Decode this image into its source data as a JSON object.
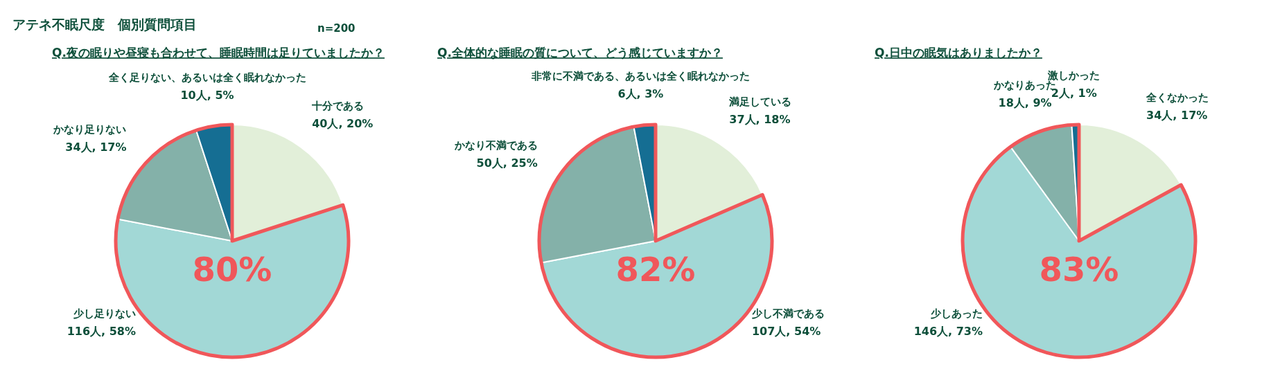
{
  "chart_data": [
    {
      "type": "pie",
      "title": "Q.夜の眠りや昼寝も合わせて、睡眠時間は足りていましたか？",
      "categories": [
        "十分である",
        "少し足りない",
        "かなり足りない",
        "全く足りない、あるいは全く眠れなかった"
      ],
      "values": [
        40,
        116,
        34,
        10
      ],
      "value_labels": [
        "40人, 20%",
        "116人, 58%",
        "34人, 17%",
        "10人, 5%"
      ],
      "colors": [
        "#e2efd9",
        "#a2d8d6",
        "#84b1a9",
        "#156e93"
      ],
      "annotations": [
        "アテネ不眠尺度　個別質問項目",
        "n=200",
        "80%"
      ]
    },
    {
      "type": "pie",
      "title": "Q.全体的な睡眠の質について、どう感じていますか？",
      "categories": [
        "満足している",
        "少し不満である",
        "かなり不満である",
        "非常に不満である、あるいは全く眠れなかった"
      ],
      "values": [
        37,
        107,
        50,
        6
      ],
      "value_labels": [
        "37人, 18%",
        "107人, 54%",
        "50人, 25%",
        "6人, 3%"
      ],
      "colors": [
        "#e2efd9",
        "#a2d8d6",
        "#84b1a9",
        "#156e93"
      ],
      "annotations": [
        "82%"
      ]
    },
    {
      "type": "pie",
      "title": "Q.日中の眠気はありましたか？",
      "categories": [
        "全くなかった",
        "少しあった",
        "かなりあった",
        "激しかった"
      ],
      "values": [
        34,
        146,
        18,
        2
      ],
      "value_labels": [
        "34人, 17%",
        "146人, 73%",
        "18人, 9%",
        "2人, 1%"
      ],
      "colors": [
        "#e2efd9",
        "#a2d8d6",
        "#84b1a9",
        "#156e93"
      ],
      "annotations": [
        "83%"
      ]
    }
  ]
}
